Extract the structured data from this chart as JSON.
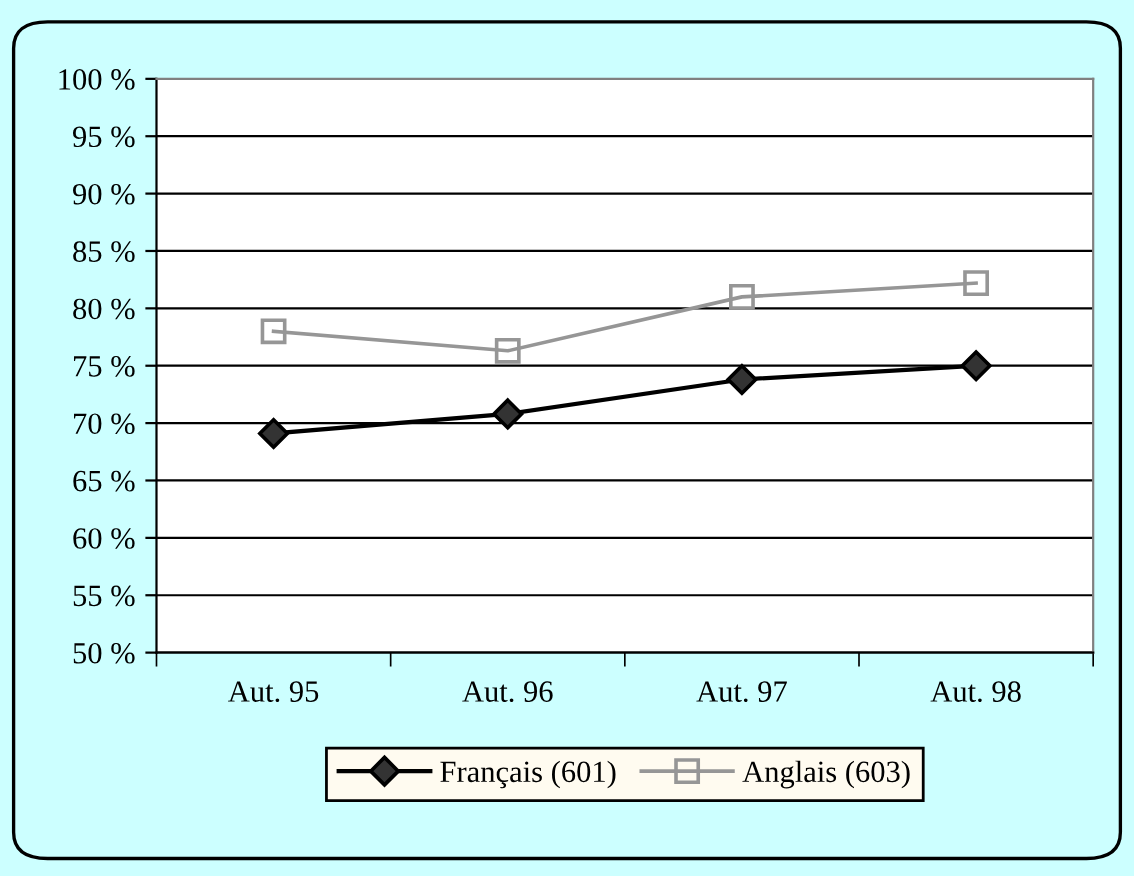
{
  "chart_data": {
    "type": "line",
    "categories": [
      "Aut. 95",
      "Aut. 96",
      "Aut. 97",
      "Aut. 98"
    ],
    "series": [
      {
        "name": "Français (601)",
        "color": "#000000",
        "marker": "diamond",
        "values": [
          69.1,
          70.8,
          73.8,
          75.0
        ]
      },
      {
        "name": "Anglais (603)",
        "color": "#969696",
        "marker": "square",
        "values": [
          78.0,
          76.3,
          81.0,
          82.2
        ]
      }
    ],
    "ylim": [
      50,
      100
    ],
    "yticks": [
      {
        "value": 50,
        "label": "50 %"
      },
      {
        "value": 55,
        "label": "55 %"
      },
      {
        "value": 60,
        "label": "60 %"
      },
      {
        "value": 65,
        "label": "65 %"
      },
      {
        "value": 70,
        "label": "70 %"
      },
      {
        "value": 75,
        "label": "75 %"
      },
      {
        "value": 80,
        "label": "80 %"
      },
      {
        "value": 85,
        "label": "85 %"
      },
      {
        "value": 90,
        "label": "90 %"
      },
      {
        "value": 95,
        "label": "95 %"
      },
      {
        "value": 100,
        "label": "100 %"
      }
    ],
    "grid": "y",
    "legend": "bottom",
    "line_style": "solid"
  }
}
